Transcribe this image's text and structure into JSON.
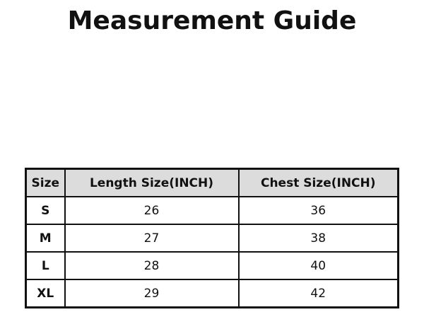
{
  "title": "Measurement Guide",
  "table": {
    "headers": [
      "Size",
      "Length Size(INCH)",
      "Chest Size(INCH)"
    ],
    "rows": [
      [
        "S",
        "26",
        "36"
      ],
      [
        "M",
        "27",
        "38"
      ],
      [
        "L",
        "28",
        "40"
      ],
      [
        "XL",
        "29",
        "42"
      ]
    ]
  },
  "colors": {
    "header_bg": "#dcdcdc",
    "border": "#111111"
  }
}
